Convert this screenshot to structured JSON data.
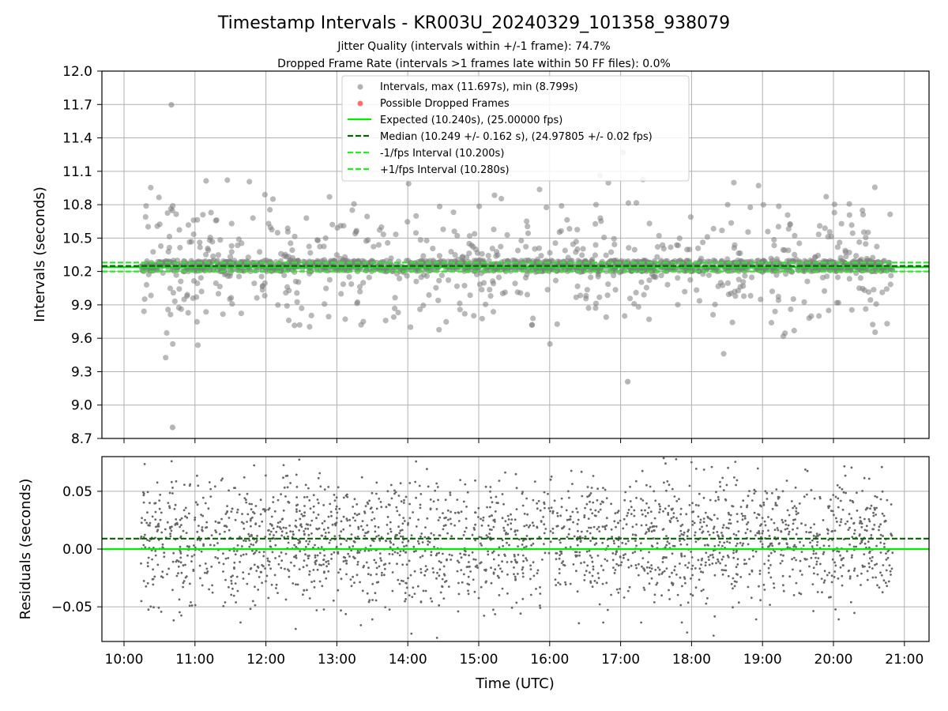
{
  "title": "Timestamp Intervals - KR003U_20240329_101358_938079",
  "subtitle_1": "Jitter Quality (intervals within +/-1 frame): 74.7%",
  "subtitle_2": "Dropped Frame Rate (intervals >1 frames late within 50 FF files): 0.0%",
  "colors": {
    "points": "#808080",
    "dropped": "#ff4d4d",
    "expected": "#00ee00",
    "median": "#006400",
    "fps_band": "#22ee22",
    "grid": "#b0b0b0",
    "residuals": "#666666"
  },
  "chart_data": [
    {
      "type": "scatter",
      "ylabel": "Intervals (seconds)",
      "ylim": [
        8.7,
        12.0
      ],
      "yticks": [
        "8.7",
        "9.0",
        "9.3",
        "9.6",
        "9.9",
        "10.2",
        "10.5",
        "10.8",
        "11.1",
        "11.4",
        "11.7",
        "12.0"
      ],
      "grid": true,
      "legend_position": "upper center",
      "x_range_time": [
        "10:14",
        "20:50"
      ],
      "series": [
        {
          "name": "Intervals, max (11.697s), min (8.799s)",
          "max": 11.697,
          "min": 8.799,
          "typical_band": [
            10.2,
            10.3
          ],
          "notable_points": [
            {
              "t": "10:40",
              "y": 11.697
            },
            {
              "t": "10:41",
              "y": 8.799
            },
            {
              "t": "17:06",
              "y": 9.21
            },
            {
              "t": "17:02",
              "y": 11.27
            }
          ]
        },
        {
          "name": "Possible Dropped Frames",
          "values": []
        }
      ],
      "lines": [
        {
          "name": "Expected (10.240s), (25.00000 fps)",
          "y": 10.24,
          "style": "solid"
        },
        {
          "name": "Median (10.249 +/- 0.162 s), (24.97805 +/- 0.02 fps)",
          "y": 10.249,
          "style": "dashed"
        },
        {
          "name": "-1/fps Interval (10.200s)",
          "y": 10.2,
          "style": "dashed"
        },
        {
          "name": "+1/fps Interval (10.280s)",
          "y": 10.28,
          "style": "dashed"
        }
      ]
    },
    {
      "type": "scatter",
      "ylabel": "Residuals (seconds)",
      "xlabel": "Time (UTC)",
      "ylim": [
        -0.08,
        0.08
      ],
      "yticks": [
        "−0.05",
        "0.00",
        "0.05"
      ],
      "xticks": [
        "10:00",
        "11:00",
        "12:00",
        "13:00",
        "14:00",
        "15:00",
        "16:00",
        "17:00",
        "18:00",
        "19:00",
        "20:00",
        "21:00"
      ],
      "grid": true,
      "lines": [
        {
          "name": "Expected",
          "y": 0.0,
          "style": "solid"
        },
        {
          "name": "Median",
          "y": 0.009,
          "style": "dashed"
        }
      ],
      "residual_spread": [
        -0.08,
        0.08
      ]
    }
  ]
}
